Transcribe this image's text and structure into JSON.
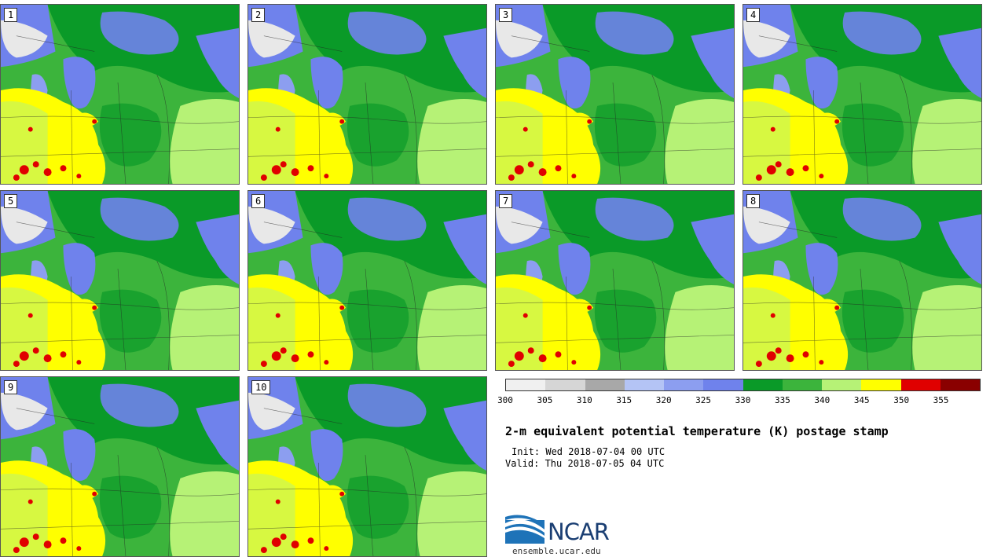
{
  "panels": [
    {
      "label": "1"
    },
    {
      "label": "2"
    },
    {
      "label": "3"
    },
    {
      "label": "4"
    },
    {
      "label": "5"
    },
    {
      "label": "6"
    },
    {
      "label": "7"
    },
    {
      "label": "8"
    },
    {
      "label": "9"
    },
    {
      "label": "10"
    }
  ],
  "colorbar": {
    "colors": [
      "#f0f0f0",
      "#d6d6d6",
      "#a8a8a8",
      "#b4c4f5",
      "#8c9ef0",
      "#6f82ec",
      "#0a9a28",
      "#3cb43c",
      "#b6f276",
      "#ffff00",
      "#e00000",
      "#8a0000"
    ],
    "ticks": [
      "300",
      "305",
      "310",
      "315",
      "320",
      "325",
      "330",
      "335",
      "340",
      "345",
      "350",
      "355"
    ]
  },
  "title": "2-m equivalent potential temperature (K) postage stamp",
  "init": "Init: Wed 2018-07-04 00 UTC",
  "valid": "Valid: Thu 2018-07-05 04 UTC",
  "logo": {
    "text": "NCAR",
    "site": "ensemble.ucar.edu"
  }
}
